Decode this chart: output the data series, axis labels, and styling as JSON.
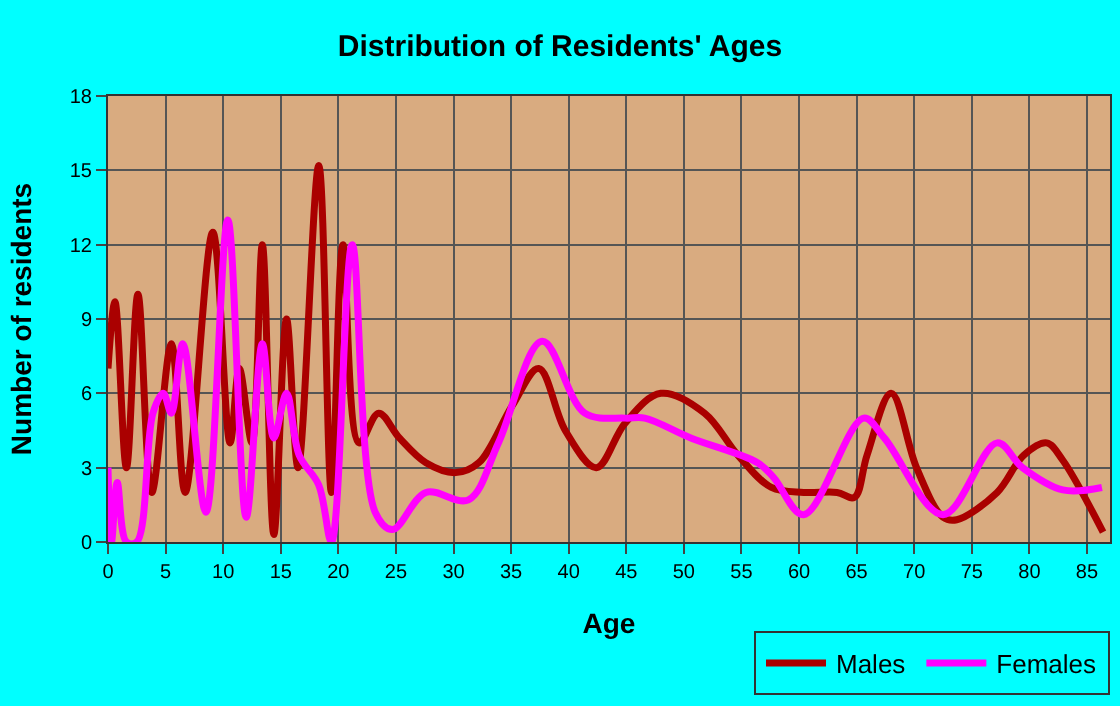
{
  "chart_data": {
    "type": "line",
    "title": "Distribution of Residents' Ages",
    "xlabel": "Age",
    "ylabel": "Number of residents",
    "xlim": [
      0,
      87
    ],
    "xticks": [
      0,
      5,
      10,
      15,
      20,
      25,
      30,
      35,
      40,
      45,
      50,
      55,
      60,
      65,
      70,
      75,
      80,
      85
    ],
    "ylim": [
      0,
      18
    ],
    "yticks": [
      0,
      3,
      6,
      9,
      12,
      15,
      18
    ],
    "grid": true,
    "legend": "bottom right",
    "marker": "none",
    "line_style": "solid",
    "series": [
      {
        "name": "Males",
        "color": "#aa0000",
        "x": [
          0,
          0.6,
          1.6,
          2.6,
          3.8,
          5.5,
          6.7,
          9.1,
          10.6,
          11.4,
          12.5,
          13.4,
          14.4,
          15.5,
          16.5,
          18.3,
          19.4,
          20.4,
          21.8,
          23.5,
          25.3,
          27.6,
          30.2,
          32.2,
          35.1,
          37.4,
          39.7,
          42.4,
          44.9,
          48,
          51.8,
          54.7,
          57.6,
          60.4,
          63.3,
          64.8,
          65.9,
          68,
          70.2,
          72.5,
          73.7,
          77.2,
          79.5,
          81.5,
          82.9,
          86.4
        ],
        "values": [
          7,
          9.7,
          3,
          10,
          2,
          8,
          2,
          12.5,
          4,
          7,
          4,
          12,
          0.3,
          9,
          3,
          15.2,
          2,
          12,
          4,
          5.2,
          4.2,
          3.2,
          2.8,
          3.2,
          5.5,
          7,
          4.5,
          3,
          4.8,
          6,
          5.2,
          3.5,
          2.2,
          2,
          2,
          1.8,
          3.5,
          6,
          3,
          1,
          0.9,
          2,
          3.5,
          4,
          3.3,
          0.4
        ]
      },
      {
        "name": "Females",
        "color": "#ff00ff",
        "x": [
          0,
          0.3,
          0.8,
          1.6,
          2.5,
          3.9,
          4.8,
          5.5,
          6.5,
          8.5,
          10.4,
          12,
          13.4,
          14.4,
          15.5,
          16.6,
          18.3,
          19.4,
          21.2,
          23.2,
          24.7,
          27.6,
          31.3,
          33.9,
          37.7,
          41.4,
          44.9,
          46.6,
          50.6,
          56.4,
          57.8,
          60.4,
          65.6,
          67.4,
          72.5,
          77.2,
          79.4,
          82.9,
          86.3
        ],
        "values": [
          3,
          0,
          2.4,
          0,
          0,
          5.2,
          6,
          5.2,
          8,
          1.2,
          13,
          1,
          8,
          4.2,
          6,
          3.5,
          2.3,
          0,
          12,
          1.2,
          0.5,
          2,
          1.7,
          4,
          8.1,
          5.2,
          5,
          5,
          4.2,
          3.2,
          2.6,
          1.1,
          5,
          4.2,
          1.1,
          4,
          3,
          2.1,
          2.2
        ]
      }
    ]
  }
}
